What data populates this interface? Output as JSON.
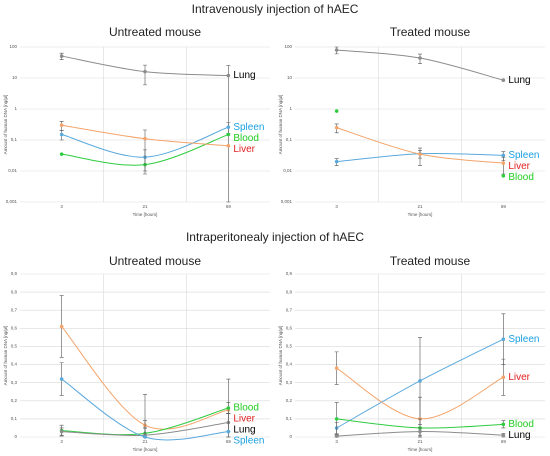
{
  "sections": [
    "Intravenously injection of hAEC",
    "Intraperitonealy injection of hAEC"
  ],
  "chart_data": [
    {
      "type": "line",
      "title": "Untreated mouse",
      "xlabel": "Time [hours]",
      "ylabel": "Amount of human DNA [ng/µl]",
      "categories": [
        "3",
        "21",
        "69"
      ],
      "log": true,
      "grid": true,
      "ylim": [
        0.001,
        100
      ],
      "yticks": [
        {
          "value": 0.001,
          "label": "0,001"
        },
        {
          "value": 0.01,
          "label": "0,01"
        },
        {
          "value": 0.1,
          "label": "0,1"
        },
        1,
        10,
        100
      ],
      "series": [
        {
          "name": "Lung",
          "color": "#8c8c8c",
          "label_color": "#000000",
          "values": [
            51,
            16,
            12
          ],
          "errors": [
            12,
            10,
            13
          ]
        },
        {
          "name": "Spleen",
          "color": "#5aa9dc",
          "label_color": "#1a9fe0",
          "values": [
            0.15,
            0.028,
            0.26
          ],
          "errors": [
            0.05,
            0.02,
            0.1
          ]
        },
        {
          "name": "Blood",
          "color": "#2ecc40",
          "label_color": "#22cc22",
          "values": [
            0.035,
            0.016,
            0.15
          ],
          "errors": [
            null,
            null,
            null
          ]
        },
        {
          "name": "Liver",
          "color": "#f4a46a",
          "label_color": "#e02020",
          "values": [
            0.3,
            0.11,
            0.065
          ],
          "errors": [
            0.1,
            0.1,
            null
          ]
        }
      ]
    },
    {
      "type": "line",
      "title": "Treated mouse",
      "xlabel": "Time [hours]",
      "ylabel": "Amount of human DNA [ng/µl]",
      "categories": [
        "3",
        "21",
        "69"
      ],
      "log": true,
      "grid": true,
      "ylim": [
        0.001,
        100
      ],
      "yticks": [
        {
          "value": 0.001,
          "label": "0,001"
        },
        {
          "value": 0.01,
          "label": "0,01"
        },
        {
          "value": 0.1,
          "label": "0,1"
        },
        1,
        10,
        100
      ],
      "series": [
        {
          "name": "Lung",
          "color": "#8c8c8c",
          "label_color": "#000000",
          "values": [
            80,
            44,
            8.5
          ],
          "errors": [
            20,
            15,
            null
          ]
        },
        {
          "name": "Spleen",
          "color": "#5aa9dc",
          "label_color": "#1a9fe0",
          "values": [
            0.02,
            0.036,
            0.032
          ],
          "errors": [
            0.005,
            0.01,
            0.01
          ]
        },
        {
          "name": "Liver",
          "color": "#f4a46a",
          "label_color": "#e02020",
          "values": [
            0.25,
            0.035,
            0.018
          ],
          "errors": [
            0.08,
            0.02,
            0.01
          ]
        },
        {
          "name": "Blood",
          "color": "#2ecc40",
          "label_color": "#22cc22",
          "values": [
            0.86,
            null,
            0.007
          ],
          "errors": [
            null,
            null,
            null
          ],
          "line": false
        }
      ]
    },
    {
      "type": "line",
      "title": "Untreated mouse",
      "xlabel": "Time [hours]",
      "ylabel": "Amount of human DNA [ng/µl]",
      "categories": [
        "3",
        "21",
        "69"
      ],
      "log": false,
      "grid": true,
      "ylim": [
        0,
        0.9
      ],
      "yticks": [
        0,
        {
          "value": 0.1,
          "label": "0,1"
        },
        {
          "value": 0.2,
          "label": "0,2"
        },
        {
          "value": 0.3,
          "label": "0,3"
        },
        {
          "value": 0.4,
          "label": "0,4"
        },
        {
          "value": 0.5,
          "label": "0,5"
        },
        {
          "value": 0.6,
          "label": "0,6"
        },
        {
          "value": 0.7,
          "label": "0,7"
        },
        {
          "value": 0.8,
          "label": "0,8"
        },
        {
          "value": 0.9,
          "label": "0,9"
        }
      ],
      "series": [
        {
          "name": "Liver",
          "color": "#f4a46a",
          "label_color": "#e02020",
          "values": [
            0.61,
            0.065,
            0.15
          ],
          "errors": [
            0.17,
            0.17,
            0.17
          ]
        },
        {
          "name": "Blood",
          "color": "#2ecc40",
          "label_color": "#22cc22",
          "values": [
            0.035,
            0.02,
            0.16
          ],
          "errors": [
            0.03,
            0.03,
            0.03
          ]
        },
        {
          "name": "Lung",
          "color": "#8c8c8c",
          "label_color": "#000000",
          "values": [
            0.03,
            0.01,
            0.08
          ],
          "errors": [
            0.02,
            0.08,
            0.05
          ]
        },
        {
          "name": "Spleen",
          "color": "#5aa9dc",
          "label_color": "#1a9fe0",
          "values": [
            0.32,
            0,
            0.03
          ],
          "errors": [
            0.09,
            0.05,
            0.1
          ]
        }
      ]
    },
    {
      "type": "line",
      "title": "Treated mouse",
      "xlabel": "Time [hours]",
      "ylabel": "Amount of human DNA [ng/µl]",
      "categories": [
        "3",
        "21",
        "69"
      ],
      "log": false,
      "grid": true,
      "ylim": [
        0,
        0.9
      ],
      "yticks": [
        0,
        {
          "value": 0.1,
          "label": "0,1"
        },
        {
          "value": 0.2,
          "label": "0,2"
        },
        {
          "value": 0.3,
          "label": "0,3"
        },
        {
          "value": 0.4,
          "label": "0,4"
        },
        {
          "value": 0.5,
          "label": "0,5"
        },
        {
          "value": 0.6,
          "label": "0,6"
        },
        {
          "value": 0.7,
          "label": "0,7"
        },
        {
          "value": 0.8,
          "label": "0,8"
        },
        {
          "value": 0.9,
          "label": "0,9"
        }
      ],
      "series": [
        {
          "name": "Spleen",
          "color": "#5aa9dc",
          "label_color": "#1a9fe0",
          "values": [
            0.05,
            0.31,
            0.54
          ],
          "errors": [
            0.03,
            0.24,
            0.14
          ]
        },
        {
          "name": "Liver",
          "color": "#f4a46a",
          "label_color": "#e02020",
          "values": [
            0.38,
            0.1,
            0.33
          ],
          "errors": [
            0.09,
            0.12,
            0.1
          ]
        },
        {
          "name": "Blood",
          "color": "#2ecc40",
          "label_color": "#22cc22",
          "values": [
            0.1,
            0.05,
            0.07
          ],
          "errors": [
            0.09,
            0.05,
            0.02
          ]
        },
        {
          "name": "Lung",
          "color": "#8c8c8c",
          "label_color": "#000000",
          "values": [
            0.005,
            0.03,
            0.01
          ],
          "errors": [
            0.01,
            0.02,
            0.01
          ]
        }
      ]
    }
  ]
}
